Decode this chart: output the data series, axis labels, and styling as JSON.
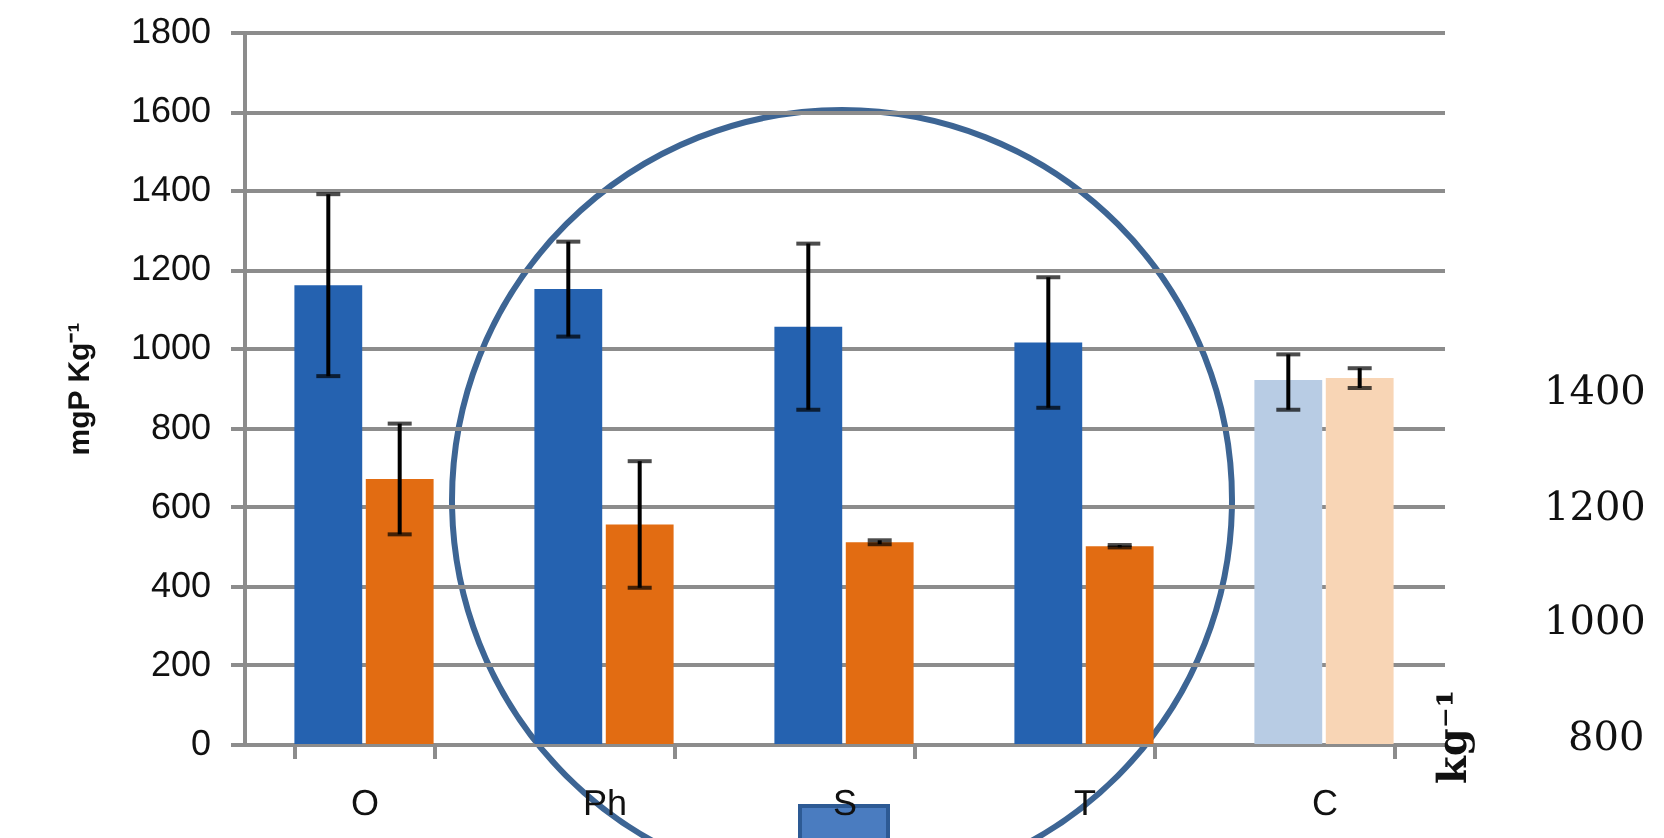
{
  "chart_data": {
    "type": "bar",
    "ylabel": "mgP Kg⁻¹",
    "categories": [
      "O",
      "Ph",
      "S",
      "T",
      "C"
    ],
    "series": [
      {
        "colors": [
          "#2562b0",
          "#2562b0",
          "#2562b0",
          "#2562b0",
          "#b8cce4"
        ],
        "values": [
          1160,
          1150,
          1055,
          1015,
          920
        ],
        "errors": [
          230,
          120,
          210,
          165,
          [
            845,
            985
          ]
        ]
      },
      {
        "colors": [
          "#e26c12",
          "#e26c12",
          "#e26c12",
          "#e26c12",
          "#f8d5b5"
        ],
        "values": [
          670,
          555,
          510,
          500,
          925
        ],
        "errors": [
          140,
          160,
          5,
          3,
          25
        ]
      }
    ],
    "ylim": [
      0,
      1800
    ],
    "yticks": [
      0,
      200,
      400,
      600,
      800,
      1000,
      1200,
      1400,
      1600,
      1800
    ],
    "grid": "y",
    "annotations": [
      "1400",
      "1200",
      "1000",
      "800",
      "kg⁻¹"
    ]
  }
}
